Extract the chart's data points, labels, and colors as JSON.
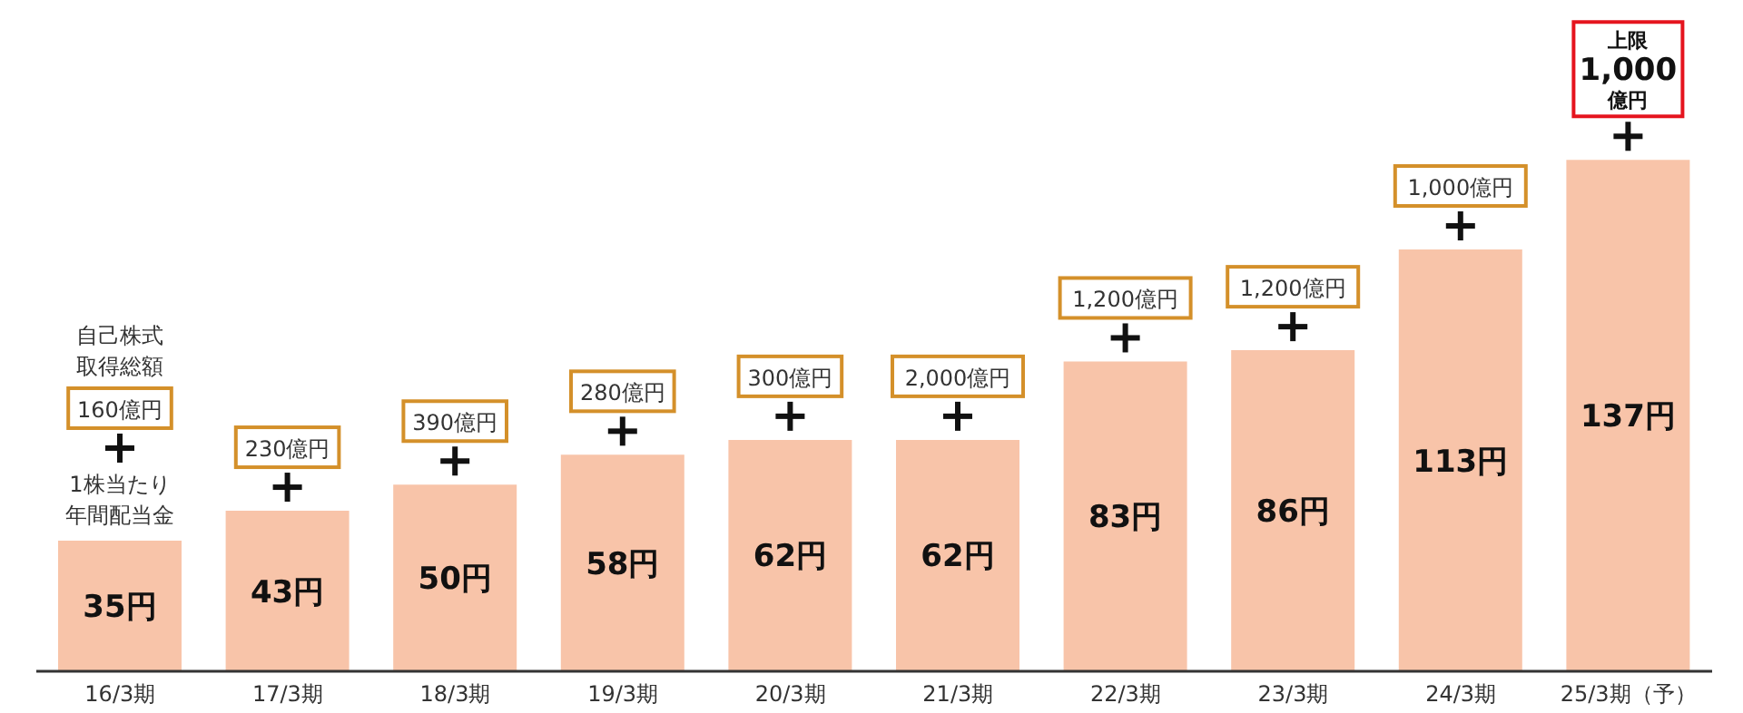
{
  "chart_data": {
    "type": "bar",
    "categories": [
      "16/3期",
      "17/3期",
      "18/3期",
      "19/3期",
      "20/3期",
      "21/3期",
      "22/3期",
      "23/3期",
      "24/3期",
      "25/3期（予）"
    ],
    "values": [
      35,
      43,
      50,
      58,
      62,
      62,
      83,
      86,
      113,
      137
    ],
    "value_labels": [
      "35円",
      "43円",
      "50円",
      "58円",
      "62円",
      "62円",
      "83円",
      "86円",
      "113円",
      "137円"
    ],
    "color": "#f8c4a9",
    "annotations": [
      "自己株式取得総額",
      "1株当たり年間配当金",
      "160億円",
      "230億円",
      "390億円",
      "280億円",
      "300億円",
      "2,000億円",
      "1,200億円",
      "1,200億円",
      "1,000億円",
      "上限1,000億円"
    ]
  }
}
